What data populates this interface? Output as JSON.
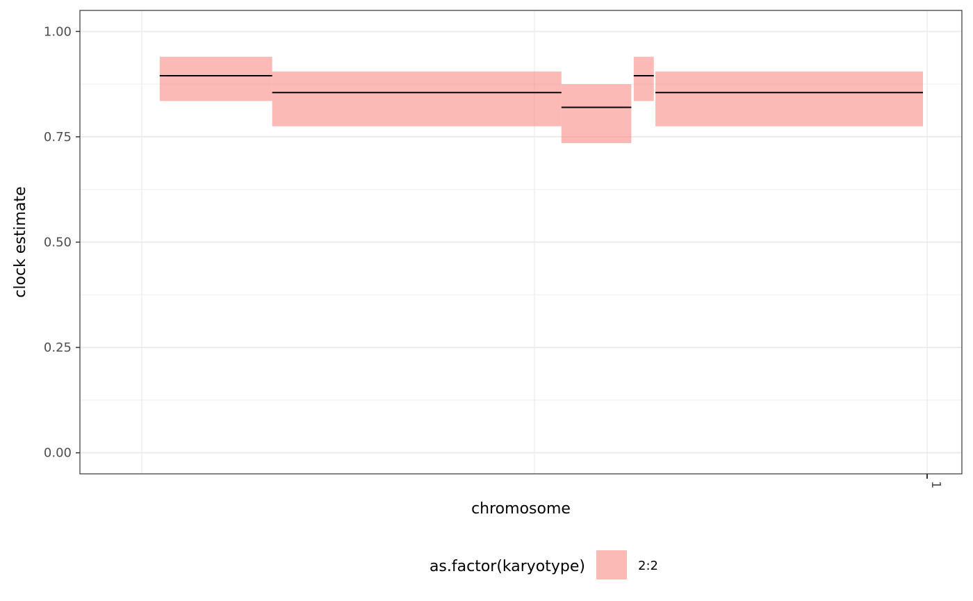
{
  "chart_data": {
    "type": "bar",
    "xlabel": "chromosome",
    "ylabel": "clock estimate",
    "ylim": [
      -0.05,
      1.05
    ],
    "yticks": [
      0,
      0.25,
      0.5,
      0.75,
      1.0
    ],
    "ytick_labels": [
      "0.00",
      "0.25",
      "0.50",
      "0.75",
      "1.00"
    ],
    "xtick_labels": [
      "1"
    ],
    "grid": true,
    "legend_position": "bottom",
    "legend_title": "as.factor(karyotype)",
    "fill_color": "#F8766D",
    "segments": [
      {
        "karyotype": "2:2",
        "start": 0.05,
        "end": 0.19,
        "estimate": 0.895,
        "low": 0.835,
        "high": 0.94
      },
      {
        "karyotype": "2:2",
        "start": 0.19,
        "end": 0.55,
        "estimate": 0.855,
        "low": 0.775,
        "high": 0.905
      },
      {
        "karyotype": "2:2",
        "start": 0.55,
        "end": 0.637,
        "estimate": 0.82,
        "low": 0.735,
        "high": 0.875
      },
      {
        "karyotype": "2:2",
        "start": 0.64,
        "end": 0.665,
        "estimate": 0.895,
        "low": 0.835,
        "high": 0.94
      },
      {
        "karyotype": "2:2",
        "start": 0.667,
        "end": 1.0,
        "estimate": 0.855,
        "low": 0.775,
        "high": 0.905
      }
    ],
    "series": [
      {
        "name": "2:2",
        "color": "#F8766D"
      }
    ]
  }
}
